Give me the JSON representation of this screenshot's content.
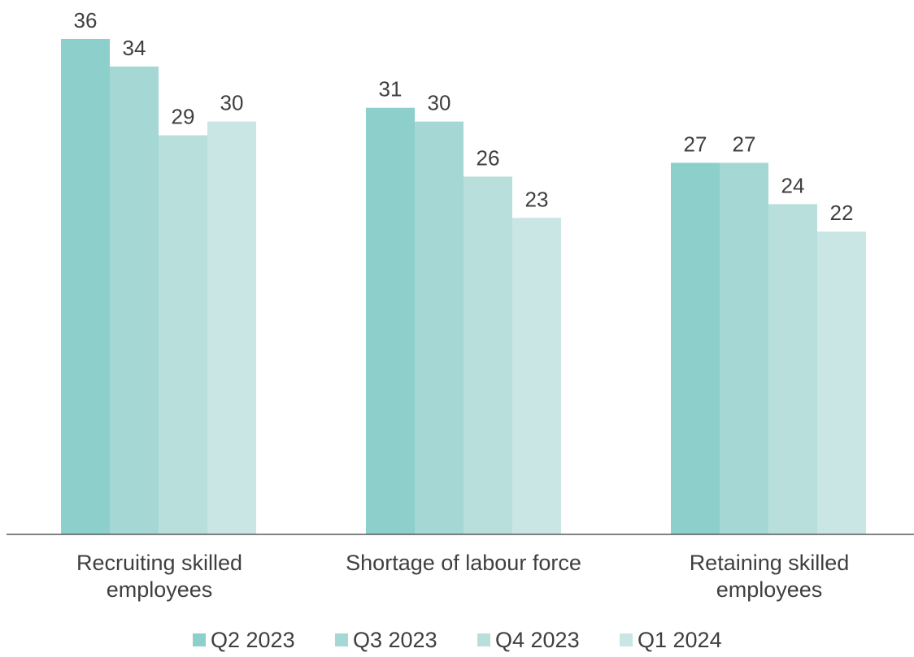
{
  "chart_data": {
    "type": "bar",
    "title": "",
    "xlabel": "",
    "ylabel": "",
    "ylim": [
      0,
      36
    ],
    "grid": false,
    "legend_position": "bottom",
    "categories": [
      [
        "Recruiting skilled",
        "employees"
      ],
      [
        "Shortage of labour force"
      ],
      [
        "Retaining skilled",
        "employees"
      ]
    ],
    "series": [
      {
        "name": "Q2 2023",
        "color": "#8ccfcb",
        "values": [
          36,
          31,
          27
        ]
      },
      {
        "name": "Q3 2023",
        "color": "#a5d8d5",
        "values": [
          34,
          30,
          27
        ]
      },
      {
        "name": "Q4 2023",
        "color": "#b8dfdc",
        "values": [
          29,
          26,
          24
        ]
      },
      {
        "name": "Q1 2024",
        "color": "#c9e5e4",
        "values": [
          30,
          23,
          22
        ]
      }
    ],
    "axis_color": "#595959",
    "text_color": "#3f3f3f"
  }
}
